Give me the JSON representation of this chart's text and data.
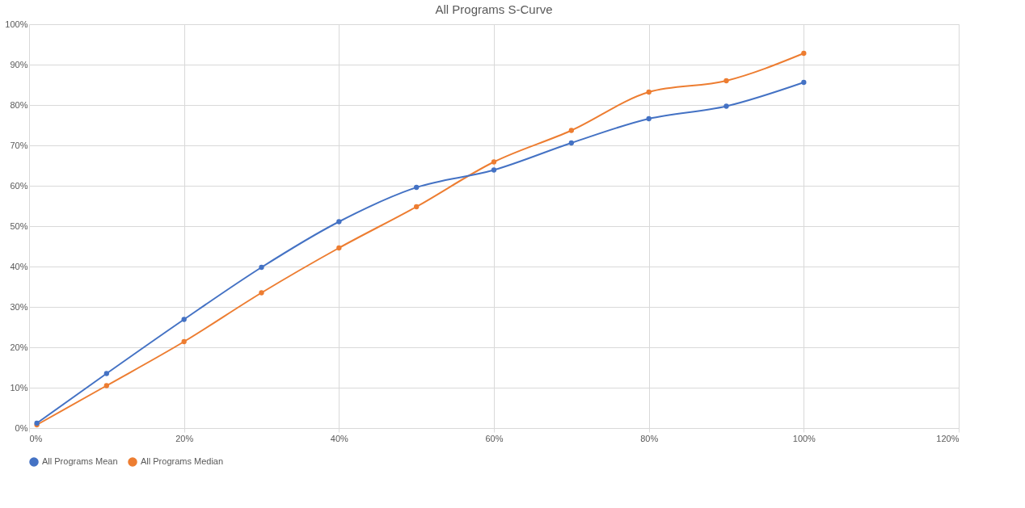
{
  "chart_data": {
    "type": "line",
    "title": "All Programs S-Curve",
    "x": [
      1,
      10,
      20,
      30,
      40,
      50,
      60,
      70,
      80,
      90,
      100
    ],
    "series": [
      {
        "name": "All Programs Mean",
        "color": "#4472c4",
        "values": [
          1.2,
          13.5,
          26.9,
          39.8,
          51.1,
          59.6,
          63.9,
          70.6,
          76.6,
          79.7,
          85.6
        ]
      },
      {
        "name": "All Programs Median",
        "color": "#ed7d31",
        "values": [
          0.8,
          10.5,
          21.4,
          33.5,
          44.6,
          54.8,
          65.9,
          73.7,
          83.2,
          86.0,
          92.8
        ]
      }
    ],
    "xlim": [
      0,
      120
    ],
    "xticks": [
      {
        "value": 0,
        "label": "0%"
      },
      {
        "value": 20,
        "label": "20%"
      },
      {
        "value": 40,
        "label": "40%"
      },
      {
        "value": 60,
        "label": "60%"
      },
      {
        "value": 80,
        "label": "80%"
      },
      {
        "value": 100,
        "label": "100%"
      },
      {
        "value": 120,
        "label": "120%"
      }
    ],
    "ylim": [
      0,
      100
    ],
    "yticks": [
      {
        "value": 0,
        "label": "0%"
      },
      {
        "value": 10,
        "label": "10%"
      },
      {
        "value": 20,
        "label": "20%"
      },
      {
        "value": 30,
        "label": "30%"
      },
      {
        "value": 40,
        "label": "40%"
      },
      {
        "value": 50,
        "label": "50%"
      },
      {
        "value": 60,
        "label": "60%"
      },
      {
        "value": 70,
        "label": "70%"
      },
      {
        "value": 80,
        "label": "80%"
      },
      {
        "value": 90,
        "label": "90%"
      },
      {
        "value": 100,
        "label": "100%"
      }
    ],
    "grid": true,
    "legend": "bottom",
    "marker": "circle",
    "line_style": "solid"
  }
}
